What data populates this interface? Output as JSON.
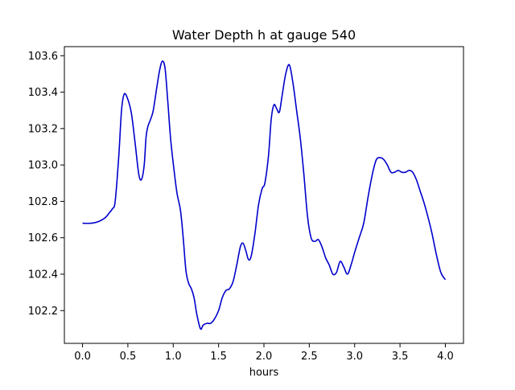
{
  "chart_data": {
    "type": "line",
    "title": "Water Depth h at gauge 540",
    "xlabel": "hours",
    "ylabel": "",
    "xlim": [
      -0.2,
      4.2
    ],
    "ylim": [
      102.02,
      103.65
    ],
    "grid": false,
    "xticks": [
      0.0,
      0.5,
      1.0,
      1.5,
      2.0,
      2.5,
      3.0,
      3.5,
      4.0
    ],
    "xtick_labels": [
      "0.0",
      "0.5",
      "1.0",
      "1.5",
      "2.0",
      "2.5",
      "3.0",
      "3.5",
      "4.0"
    ],
    "yticks": [
      102.2,
      102.4,
      102.6,
      102.8,
      103.0,
      103.2,
      103.4,
      103.6
    ],
    "ytick_labels": [
      "102.2",
      "102.4",
      "102.6",
      "102.8",
      "103.0",
      "103.2",
      "103.4",
      "103.6"
    ],
    "series": [
      {
        "color": "#0000cc",
        "x": [
          0.0,
          0.1,
          0.18,
          0.25,
          0.3,
          0.33,
          0.36,
          0.4,
          0.43,
          0.46,
          0.5,
          0.54,
          0.58,
          0.62,
          0.65,
          0.68,
          0.7,
          0.72,
          0.75,
          0.78,
          0.82,
          0.85,
          0.88,
          0.91,
          0.94,
          0.97,
          1.0,
          1.04,
          1.08,
          1.11,
          1.14,
          1.17,
          1.2,
          1.23,
          1.26,
          1.3,
          1.33,
          1.37,
          1.41,
          1.45,
          1.5,
          1.54,
          1.58,
          1.62,
          1.66,
          1.7,
          1.74,
          1.77,
          1.8,
          1.83,
          1.86,
          1.9,
          1.94,
          1.98,
          2.01,
          2.05,
          2.08,
          2.11,
          2.14,
          2.17,
          2.2,
          2.24,
          2.28,
          2.32,
          2.36,
          2.4,
          2.44,
          2.48,
          2.52,
          2.56,
          2.6,
          2.64,
          2.68,
          2.72,
          2.76,
          2.8,
          2.84,
          2.88,
          2.92,
          2.96,
          3.0,
          3.05,
          3.1,
          3.15,
          3.2,
          3.24,
          3.28,
          3.32,
          3.36,
          3.4,
          3.44,
          3.48,
          3.52,
          3.56,
          3.6,
          3.64,
          3.68,
          3.72,
          3.76,
          3.8,
          3.85,
          3.9,
          3.95,
          4.0
        ],
        "y": [
          102.68,
          102.68,
          102.69,
          102.71,
          102.74,
          102.76,
          102.8,
          103.05,
          103.3,
          103.39,
          103.36,
          103.28,
          103.12,
          102.95,
          102.92,
          103.0,
          103.15,
          103.21,
          103.25,
          103.3,
          103.43,
          103.52,
          103.57,
          103.53,
          103.35,
          103.15,
          103.01,
          102.85,
          102.75,
          102.6,
          102.42,
          102.35,
          102.32,
          102.27,
          102.18,
          102.1,
          102.12,
          102.13,
          102.13,
          102.15,
          102.2,
          102.27,
          102.31,
          102.32,
          102.36,
          102.45,
          102.55,
          102.57,
          102.53,
          102.48,
          102.5,
          102.62,
          102.78,
          102.87,
          102.9,
          103.05,
          103.25,
          103.33,
          103.31,
          103.29,
          103.38,
          103.5,
          103.55,
          103.45,
          103.3,
          103.15,
          102.95,
          102.72,
          102.6,
          102.58,
          102.59,
          102.55,
          102.49,
          102.45,
          102.4,
          102.41,
          102.47,
          102.44,
          102.4,
          102.45,
          102.52,
          102.6,
          102.68,
          102.83,
          102.96,
          103.03,
          103.04,
          103.03,
          103.0,
          102.96,
          102.96,
          102.97,
          102.96,
          102.96,
          102.97,
          102.96,
          102.92,
          102.86,
          102.8,
          102.73,
          102.63,
          102.51,
          102.41,
          102.37
        ]
      }
    ]
  }
}
